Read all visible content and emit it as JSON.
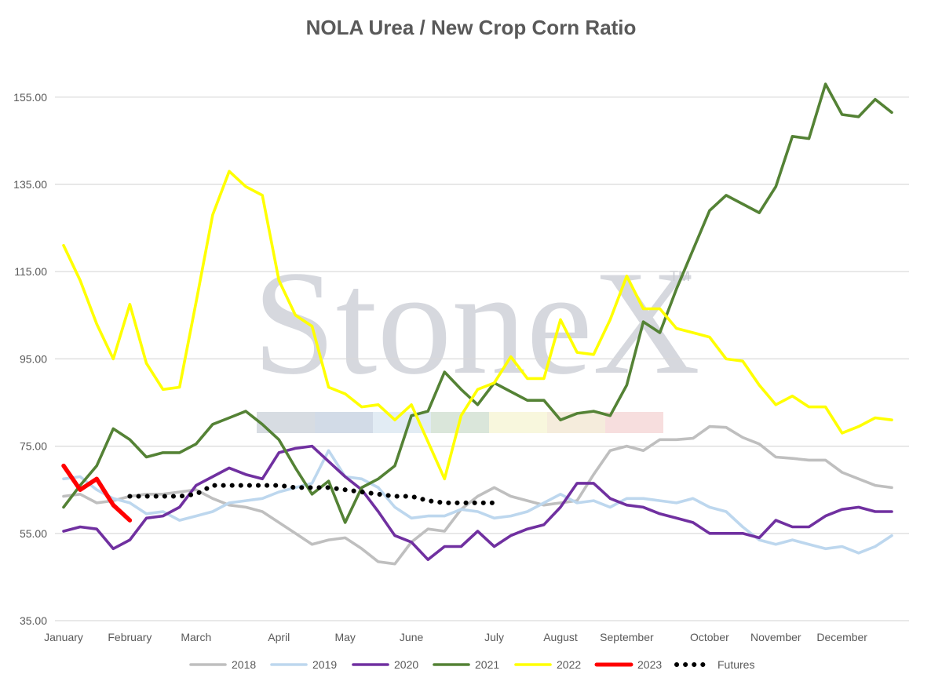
{
  "chart_data": {
    "type": "line",
    "title": "NOLA Urea / New Crop Corn Ratio",
    "xlabel": "",
    "ylabel": "",
    "ylim": [
      35,
      160
    ],
    "yticks": [
      "35.00",
      "55.00",
      "75.00",
      "95.00",
      "115.00",
      "135.00",
      "155.00"
    ],
    "yticks_values": [
      35,
      55,
      75,
      95,
      115,
      135,
      155
    ],
    "x_period_count": 52,
    "month_labels": [
      "January",
      "February",
      "March",
      "April",
      "May",
      "June",
      "July",
      "August",
      "September",
      "October",
      "November",
      "December"
    ],
    "month_label_index": [
      0,
      4,
      8,
      13,
      17,
      21,
      26,
      30,
      34,
      39,
      43,
      47
    ],
    "grid": true,
    "legend_position": "bottom",
    "watermark": "StoneX",
    "watermark_mark": "TM",
    "colors": {
      "2018": "#bfbfbf",
      "2019": "#bdd7ee",
      "2020": "#7030a0",
      "2021": "#548235",
      "2022": "#ffff00",
      "2023": "#ff0000",
      "Futures": "#000000",
      "grid": "#d9d9d9",
      "text": "#595959"
    },
    "series": [
      {
        "name": "2018",
        "start": 0,
        "values": [
          63.5,
          64,
          62,
          62.5,
          63.5,
          64,
          64,
          64.5,
          65,
          63,
          61.5,
          61,
          60,
          57.5,
          55,
          52.5,
          53.5,
          54,
          51.5,
          48.5,
          48,
          53,
          56,
          55.5,
          60.5,
          63.5,
          65.5,
          63.5,
          62.5,
          61.5,
          62,
          62.5,
          68.5,
          74,
          75,
          74,
          76.5,
          76.5,
          76.8,
          79.5,
          79.3,
          77,
          75.5,
          72.5,
          72.2,
          71.8,
          71.8,
          69,
          67.5,
          66,
          65.5
        ]
      },
      {
        "name": "2019",
        "start": 0,
        "values": [
          67.5,
          68,
          65,
          63,
          62,
          59.5,
          60,
          58,
          59,
          60,
          62,
          62.5,
          63,
          64.5,
          65.5,
          66.5,
          74,
          68,
          67.5,
          65.5,
          61,
          58.5,
          59,
          59,
          60.5,
          60,
          58.5,
          59,
          60,
          62,
          64,
          62,
          62.5,
          61,
          63,
          63,
          62.5,
          62,
          63,
          61,
          60,
          56.5,
          53.5,
          52.5,
          53.5,
          52.5,
          51.5,
          52,
          50.5,
          52,
          54.5
        ]
      },
      {
        "name": "2020",
        "start": 0,
        "values": [
          55.5,
          56.5,
          56,
          51.5,
          53.5,
          58.5,
          59,
          61,
          66,
          68,
          70,
          68.5,
          67.5,
          73.5,
          74.5,
          75,
          71.5,
          68,
          65,
          60,
          54.5,
          53,
          49,
          52,
          52,
          55.5,
          52,
          54.5,
          56,
          57,
          61,
          66.5,
          66.5,
          63,
          61.5,
          61,
          59.5,
          58.5,
          57.5,
          55,
          55,
          55,
          54,
          58,
          56.5,
          56.5,
          59,
          60.5,
          61,
          60,
          60
        ]
      },
      {
        "name": "2021",
        "start": 0,
        "values": [
          61,
          66,
          70.5,
          79,
          76.5,
          72.5,
          73.5,
          73.5,
          75.5,
          80,
          81.5,
          83,
          80,
          76.5,
          70,
          64,
          67,
          57.5,
          65.5,
          67.5,
          70.5,
          82,
          83,
          92,
          88,
          84.5,
          89.5,
          87.5,
          85.5,
          85.5,
          81,
          82.5,
          83,
          82,
          89,
          103.5,
          101,
          111,
          120,
          129,
          132.5,
          130.5,
          128.5,
          134.5,
          146,
          145.5,
          158,
          151,
          150.5,
          154.5,
          151.5
        ]
      },
      {
        "name": "2022",
        "start": 0,
        "values": [
          121,
          113,
          103,
          95,
          107.5,
          94,
          88,
          88.5,
          108,
          128,
          138,
          134.5,
          132.5,
          113,
          105,
          102.5,
          88.5,
          87,
          84,
          84.5,
          81,
          84.5,
          76,
          67.5,
          82,
          88,
          89.5,
          95.5,
          90.5,
          90.5,
          104,
          96.5,
          96,
          104,
          114,
          106.5,
          106.5,
          102,
          101,
          100,
          95,
          94.5,
          89,
          84.5,
          86.5,
          84,
          84,
          78,
          79.5,
          81.5,
          81
        ]
      },
      {
        "name": "2023",
        "start": 0,
        "values": [
          70.5,
          65,
          67.5,
          61.5,
          58
        ]
      },
      {
        "name": "Futures",
        "start": 4,
        "values": [
          63.5,
          63.5,
          63.5,
          63.5,
          64,
          66,
          66,
          66,
          66,
          66,
          65.5,
          65.5,
          65.5,
          65,
          64.5,
          64,
          63.5,
          63.5,
          62.5,
          62,
          62,
          62,
          62
        ]
      }
    ]
  }
}
